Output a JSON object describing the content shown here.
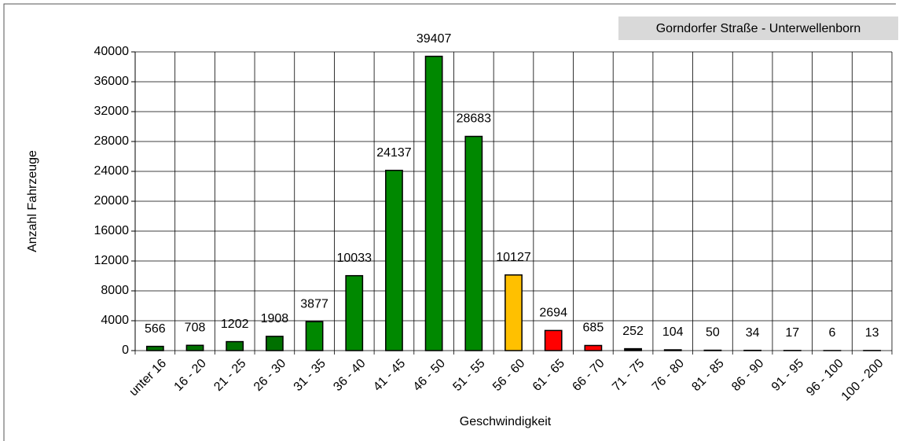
{
  "chart_data": {
    "type": "bar",
    "legend_title": "Gorndorfer Straße - Unterwellenborn",
    "xlabel": "Geschwindigkeit",
    "ylabel": "Anzahl Fahrzeuge",
    "categories": [
      "unter 16",
      "16 - 20",
      "21 - 25",
      "26 - 30",
      "31 - 35",
      "36 - 40",
      "41 - 45",
      "46 - 50",
      "51 - 55",
      "56 - 60",
      "61 - 65",
      "66 - 70",
      "71 - 75",
      "76 - 80",
      "81 - 85",
      "86 - 90",
      "91 - 95",
      "96 - 100",
      "100 - 200"
    ],
    "values": [
      566,
      708,
      1202,
      1908,
      3877,
      10033,
      24137,
      39407,
      28683,
      10127,
      2694,
      685,
      252,
      104,
      50,
      34,
      17,
      6,
      13
    ],
    "colors": [
      "#007000",
      "#007000",
      "#007000",
      "#007000",
      "#008800",
      "#008800",
      "#008800",
      "#008800",
      "#008800",
      "#ffc000",
      "#ff0000",
      "#ff0000",
      "#000000",
      "#000000",
      "#000000",
      "#000000",
      "#000000",
      "#000000",
      "#000000"
    ],
    "ylim": [
      0,
      40000
    ],
    "yticks": [
      0,
      4000,
      8000,
      12000,
      16000,
      20000,
      24000,
      28000,
      32000,
      36000,
      40000
    ],
    "grid": true
  }
}
